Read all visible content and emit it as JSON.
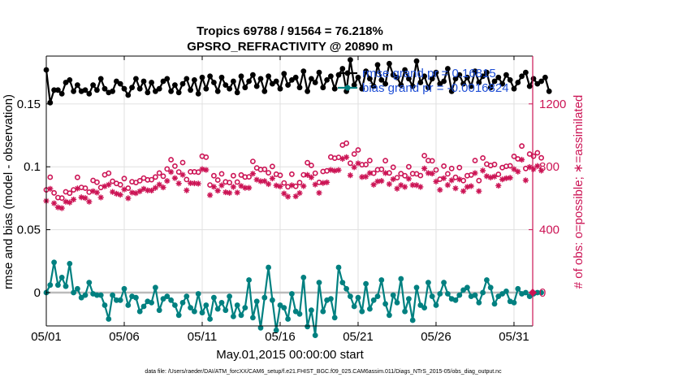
{
  "chart_data": {
    "type": "line",
    "title_line1": "Tropics 69788 / 91564 = 76.218%",
    "title_line2": "GPSRO_REFRACTIVITY @ 20890 m",
    "xlabel": "May.01,2015 00:00:00 start",
    "ylabel_left": "rmse and bias (model - observation)",
    "ylabel_right": "# of obs: o=possible; ∗=assimilated",
    "footnote": "data file: /Users/raeder/DAI/ATM_forcXX/CAM6_setup/f.e21.FHIST_BGC.f09_025.CAM6assim.011/Diags_NTrS_2015-05/obs_diag_output.nc",
    "x_range_days": [
      1,
      32.2
    ],
    "xticks": [
      {
        "value": 1,
        "label": "05/01"
      },
      {
        "value": 6,
        "label": "05/06"
      },
      {
        "value": 11,
        "label": "05/11"
      },
      {
        "value": 16,
        "label": "05/16"
      },
      {
        "value": 21,
        "label": "05/21"
      },
      {
        "value": 26,
        "label": "05/26"
      },
      {
        "value": 31,
        "label": "05/31"
      }
    ],
    "y_left_range": [
      -0.0265,
      0.188
    ],
    "yticks_left": [
      {
        "value": 0,
        "label": "0"
      },
      {
        "value": 0.05,
        "label": "0.05"
      },
      {
        "value": 0.1,
        "label": "0.1"
      },
      {
        "value": 0.15,
        "label": "0.15"
      }
    ],
    "y_right_range": [
      -212,
      1504
    ],
    "yticks_right": [
      {
        "value": 0,
        "label": "0"
      },
      {
        "value": 400,
        "label": "400"
      },
      {
        "value": 800,
        "label": "800"
      },
      {
        "value": 1200,
        "label": "1200"
      }
    ],
    "grid": true,
    "legend_position": "top-right",
    "legend": [
      {
        "label": "rmse grand pr = 0.16815",
        "color": "#000000"
      },
      {
        "label": "bias grand pr = -0.0016824",
        "color": "#008080"
      }
    ],
    "colors": {
      "rmse": "#000000",
      "bias": "#008080",
      "obs": "#cc1455",
      "zero_line": "#bbbbbb",
      "grid": "#e0e0e0"
    },
    "series": [
      {
        "name": "rmse",
        "axis": "left",
        "start_day": 1.0,
        "step_days": 0.25,
        "values": [
          0.177,
          0.151,
          0.161,
          0.161,
          0.158,
          0.167,
          0.169,
          0.16,
          0.165,
          0.16,
          0.161,
          0.158,
          0.165,
          0.161,
          0.17,
          0.162,
          0.159,
          0.16,
          0.168,
          0.166,
          0.162,
          0.157,
          0.163,
          0.17,
          0.162,
          0.168,
          0.159,
          0.167,
          0.16,
          0.162,
          0.168,
          0.17,
          0.16,
          0.165,
          0.159,
          0.166,
          0.17,
          0.161,
          0.169,
          0.158,
          0.171,
          0.162,
          0.172,
          0.167,
          0.16,
          0.171,
          0.165,
          0.162,
          0.168,
          0.159,
          0.172,
          0.163,
          0.168,
          0.173,
          0.164,
          0.17,
          0.16,
          0.172,
          0.166,
          0.168,
          0.162,
          0.174,
          0.165,
          0.169,
          0.171,
          0.163,
          0.176,
          0.16,
          0.17,
          0.167,
          0.175,
          0.163,
          0.169,
          0.172,
          0.162,
          0.173,
          0.178,
          0.16,
          0.185,
          0.165,
          0.171,
          0.162,
          0.176,
          0.17,
          0.164,
          0.181,
          0.169,
          0.166,
          0.182,
          0.173,
          0.171,
          0.165,
          0.177,
          0.17,
          0.164,
          0.184,
          0.167,
          0.172,
          0.163,
          0.17,
          0.175,
          0.166,
          0.168,
          0.178,
          0.16,
          0.17,
          0.173,
          0.166,
          0.171,
          0.164,
          0.176,
          0.167,
          0.172,
          0.175,
          0.163,
          0.168,
          0.171,
          0.166,
          0.173,
          0.169,
          0.162,
          0.167,
          0.172,
          0.175,
          0.164,
          0.17,
          0.166,
          0.168,
          0.171,
          0.16
        ]
      },
      {
        "name": "bias",
        "axis": "left",
        "start_day": 1.0,
        "step_days": 0.25,
        "values": [
          0.0,
          0.006,
          0.024,
          0.006,
          0.012,
          0.005,
          0.023,
          0.0,
          0.003,
          -0.004,
          -0.002,
          0.008,
          -0.001,
          -0.002,
          -0.002,
          -0.01,
          -0.021,
          -0.002,
          -0.006,
          -0.006,
          0.003,
          -0.01,
          -0.003,
          -0.004,
          -0.015,
          -0.011,
          -0.007,
          -0.008,
          0.004,
          -0.014,
          -0.005,
          -0.003,
          -0.006,
          -0.01,
          -0.018,
          -0.008,
          -0.003,
          -0.012,
          -0.015,
          -0.001,
          -0.016,
          -0.01,
          -0.021,
          -0.004,
          -0.013,
          -0.008,
          -0.014,
          -0.003,
          -0.019,
          -0.01,
          -0.018,
          -0.012,
          0.01,
          -0.02,
          -0.007,
          -0.028,
          -0.004,
          0.02,
          -0.006,
          -0.03,
          -0.01,
          -0.012,
          -0.021,
          -0.001,
          -0.015,
          -0.017,
          0.012,
          -0.027,
          -0.014,
          -0.034,
          0.008,
          -0.015,
          -0.006,
          -0.005,
          -0.02,
          0.02,
          0.008,
          0.003,
          -0.003,
          -0.011,
          -0.004,
          -0.015,
          0.007,
          -0.013,
          -0.006,
          -0.003,
          0.01,
          -0.009,
          -0.018,
          -0.002,
          -0.008,
          0.011,
          -0.015,
          -0.005,
          -0.022,
          0.004,
          -0.01,
          -0.012,
          0.008,
          -0.003,
          -0.01,
          -0.001,
          0.008,
          -0.001,
          -0.005,
          -0.006,
          -0.002,
          0.002,
          0.004,
          -0.003,
          -0.002,
          -0.008,
          0.0,
          0.01,
          0.004,
          -0.009,
          -0.003,
          -0.001,
          0.001,
          -0.007,
          -0.008,
          0.003,
          -0.001,
          0.0,
          -0.003,
          -0.001,
          0.0,
          0.0
        ]
      },
      {
        "name": "obs possible",
        "axis": "right",
        "marker": "circle",
        "start_day": 1.0,
        "step_days": 0.25,
        "values": [
          653,
          734,
          634,
          604,
          601,
          641,
          632,
          653,
          733,
          669,
          664,
          639,
          713,
          702,
          668,
          749,
          759,
          708,
          694,
          686,
          725,
          664,
          705,
          700,
          711,
          728,
          717,
          718,
          735,
          760,
          740,
          786,
          845,
          804,
          767,
          827,
          719,
          768,
          768,
          766,
          867,
          861,
          684,
          743,
          716,
          755,
          704,
          700,
          743,
          703,
          748,
          735,
          736,
          834,
          793,
          782,
          784,
          762,
          802,
          753,
          746,
          697,
          673,
          753,
          676,
          699,
          749,
          826,
          809,
          759,
          701,
          770,
          774,
          862,
          855,
          860,
          938,
          950,
          823,
          881,
          907,
          813,
          814,
          840,
          759,
          781,
          784,
          839,
          761,
          797,
          731,
          756,
          743,
          800,
          756,
          755,
          744,
          871,
          840,
          838,
          780,
          721,
          804,
          755,
          789,
          733,
          795,
          712,
          743,
          748,
          840,
          712,
          856,
          817,
          808,
          815,
          752,
          795,
          803,
          806,
          866,
          850,
          932,
          789,
          881,
          867,
          889,
          857
        ]
      },
      {
        "name": "obs assimilated",
        "axis": "right",
        "marker": "asterisk",
        "start_day": 1.0,
        "step_days": 0.25,
        "values": [
          583,
          660,
          568,
          542,
          537,
          578,
          573,
          592,
          662,
          606,
          601,
          578,
          645,
          636,
          605,
          676,
          686,
          640,
          629,
          622,
          656,
          600,
          636,
          632,
          644,
          660,
          650,
          649,
          666,
          687,
          669,
          710,
          767,
          728,
          694,
          749,
          650,
          696,
          695,
          693,
          785,
          780,
          620,
          673,
          648,
          682,
          638,
          634,
          672,
          636,
          678,
          666,
          666,
          756,
          718,
          708,
          709,
          690,
          726,
          681,
          675,
          630,
          610,
          682,
          612,
          633,
          677,
          748,
          733,
          687,
          634,
          697,
          701,
          780,
          775,
          779,
          851,
          861,
          746,
          797,
          822,
          735,
          737,
          760,
          686,
          707,
          710,
          760,
          690,
          721,
          661,
          683,
          672,
          724,
          684,
          683,
          672,
          789,
          760,
          757,
          706,
          653,
          727,
          684,
          714,
          663,
          720,
          645,
          672,
          677,
          760,
          645,
          776,
          740,
          732,
          738,
          680,
          720,
          727,
          730,
          785,
          769,
          845,
          714,
          798,
          785,
          805,
          776
        ]
      }
    ]
  }
}
